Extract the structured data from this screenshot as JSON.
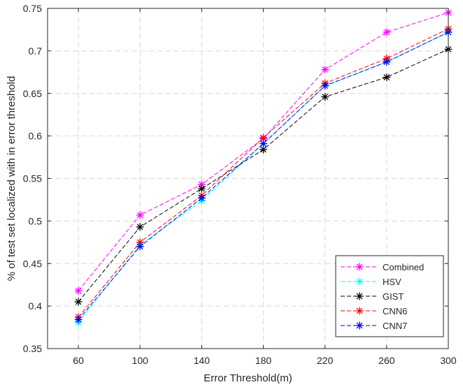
{
  "chart_data": {
    "type": "line",
    "title": "",
    "xlabel": "Error Threshold(m)",
    "ylabel": "% of test set localized with in error threshold",
    "x": [
      60,
      100,
      140,
      180,
      220,
      260,
      300
    ],
    "xlim": [
      40,
      300
    ],
    "ylim": [
      0.35,
      0.75
    ],
    "xticks": [
      "60",
      "100",
      "140",
      "180",
      "220",
      "260",
      "300"
    ],
    "yticks": [
      "0.35",
      "0.4",
      "0.45",
      "0.5",
      "0.55",
      "0.6",
      "0.65",
      "0.7",
      "0.75"
    ],
    "grid": true,
    "legend_position": "bottom-right",
    "series": [
      {
        "name": "Combined",
        "color": "#ff00ff",
        "values": [
          0.418,
          0.507,
          0.543,
          0.597,
          0.678,
          0.722,
          0.745
        ]
      },
      {
        "name": "HSV",
        "color": "#00ffff",
        "values": [
          0.381,
          0.472,
          0.524,
          0.591,
          0.659,
          0.687,
          0.722
        ]
      },
      {
        "name": "GIST",
        "color": "#000000",
        "values": [
          0.405,
          0.493,
          0.538,
          0.584,
          0.646,
          0.669,
          0.702
        ]
      },
      {
        "name": "CNN6",
        "color": "#ff0000",
        "values": [
          0.387,
          0.475,
          0.53,
          0.598,
          0.662,
          0.691,
          0.726
        ]
      },
      {
        "name": "CNN7",
        "color": "#0000ff",
        "values": [
          0.384,
          0.47,
          0.527,
          0.591,
          0.659,
          0.687,
          0.722
        ]
      }
    ]
  }
}
